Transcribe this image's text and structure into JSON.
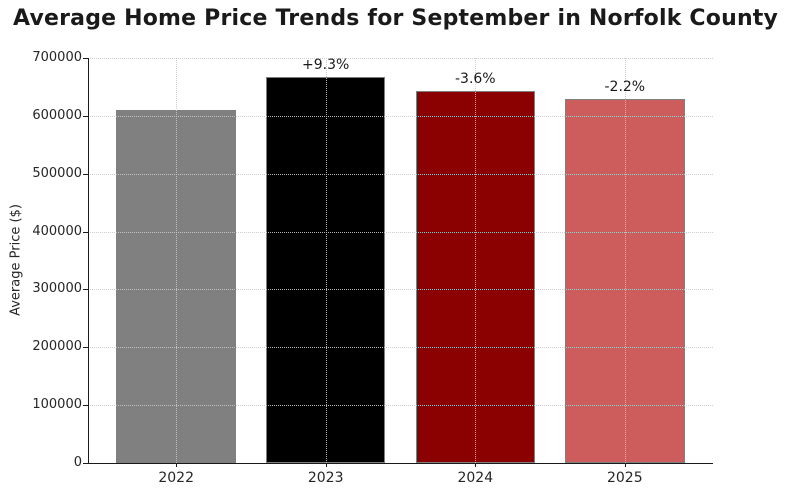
{
  "title": "Average Home Price Trends for September in Norfolk County",
  "chart_data": {
    "type": "bar",
    "title": "Average Home Price Trends for September in Norfolk County",
    "xlabel": "",
    "ylabel": "Average Price ($)",
    "categories": [
      "2022",
      "2023",
      "2024",
      "2025"
    ],
    "values": [
      610000,
      666700,
      642700,
      628600
    ],
    "bar_labels": [
      "",
      "+9.3%",
      "-3.6%",
      "-2.2%"
    ],
    "bar_colors": [
      "#808080",
      "#000000",
      "#8b0000",
      "#cd5c5c"
    ],
    "bar_edge_color": "#7f7f7f",
    "ylim": [
      0,
      700000
    ],
    "ytick_step": 100000,
    "yticks": [
      "0",
      "100000",
      "200000",
      "300000",
      "400000",
      "500000",
      "600000",
      "700000"
    ],
    "xticks": [
      "2022",
      "2023",
      "2024",
      "2025"
    ],
    "grid": "dotted, both axes, drawn over bars",
    "grid_color": "#c9c9c9",
    "axis_color": "#1a1a1a",
    "text_color": "#262626",
    "background_color": "#ffffff",
    "legend": "none"
  }
}
